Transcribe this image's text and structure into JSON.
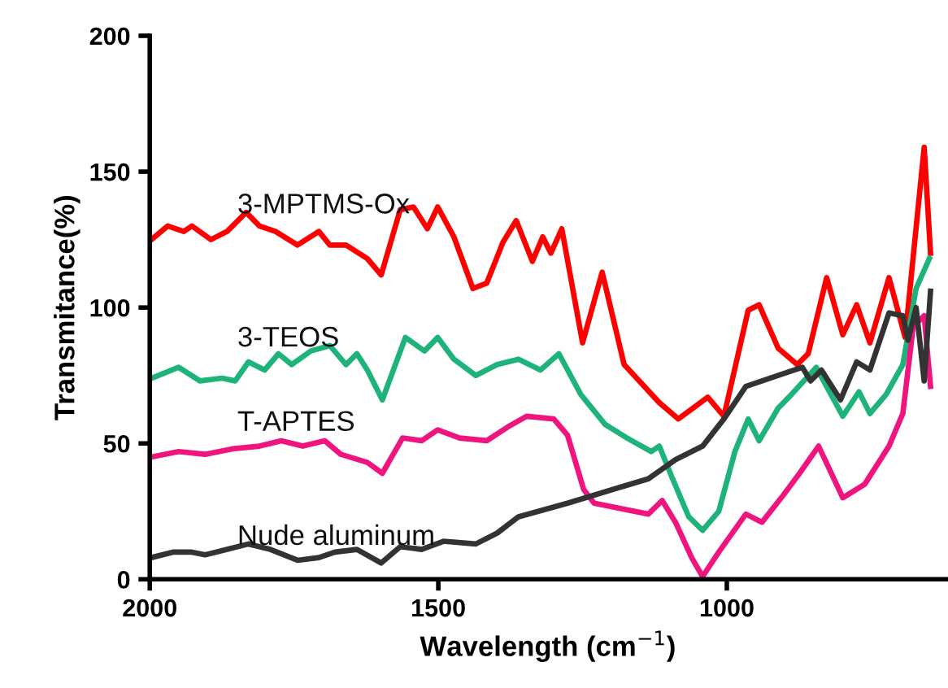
{
  "chart_data": {
    "type": "line",
    "xlabel": "Wavelength (cm$^{−1}$)",
    "ylabel": "Transmitance(%)",
    "xlim": [
      2000,
      620
    ],
    "xticks": [
      2000,
      1500,
      1000
    ],
    "ylim": [
      0,
      200
    ],
    "yticks": [
      0,
      50,
      100,
      150,
      200
    ],
    "grid": false,
    "legend": false,
    "marker": "none",
    "line_style": "solid",
    "series": [
      {
        "name": "3-MPTMS-Ox",
        "color": "#ff0000",
        "x": [
          1997,
          1969,
          1941,
          1927,
          1894,
          1866,
          1833,
          1810,
          1782,
          1744,
          1707,
          1688,
          1660,
          1623,
          1599,
          1566,
          1543,
          1519,
          1501,
          1473,
          1440,
          1416,
          1388,
          1365,
          1337,
          1319,
          1305,
          1286,
          1250,
          1216,
          1178,
          1117,
          1084,
          1033,
          1005,
          963,
          944,
          911,
          878,
          859,
          827,
          799,
          775,
          752,
          719,
          691,
          658,
          647
        ],
        "values": [
          125,
          130,
          128,
          130,
          125,
          128,
          135,
          130,
          128,
          123,
          128,
          123,
          123,
          118,
          112,
          136,
          137,
          129,
          137,
          126,
          107,
          109,
          124,
          132,
          117,
          126,
          120,
          129,
          87,
          113,
          79,
          65,
          59,
          67,
          60,
          99,
          101,
          85,
          79,
          83,
          111,
          90,
          101,
          87,
          111,
          89,
          159,
          120
        ]
      },
      {
        "name": "3-TEOS",
        "color": "#1db37a",
        "x": [
          1997,
          1950,
          1913,
          1875,
          1852,
          1829,
          1801,
          1777,
          1754,
          1721,
          1688,
          1660,
          1641,
          1623,
          1597,
          1557,
          1524,
          1501,
          1473,
          1435,
          1398,
          1361,
          1323,
          1291,
          1253,
          1211,
          1173,
          1131,
          1117,
          1094,
          1066,
          1042,
          1014,
          986,
          963,
          944,
          911,
          888,
          845,
          817,
          799,
          771,
          752,
          724,
          695,
          672,
          649
        ],
        "values": [
          74,
          78,
          73,
          74,
          73,
          80,
          77,
          83,
          79,
          84,
          86,
          79,
          83,
          77,
          66,
          89,
          84,
          89,
          81,
          75,
          79,
          81,
          77,
          83,
          68,
          57,
          52,
          47,
          49,
          37,
          23,
          18,
          25,
          47,
          59,
          51,
          63,
          68,
          78,
          67,
          60,
          69,
          61,
          68,
          79,
          107,
          118
        ]
      },
      {
        "name": "T-APTES",
        "color": "#f0147f",
        "x": [
          1997,
          1950,
          1904,
          1857,
          1810,
          1772,
          1735,
          1697,
          1669,
          1623,
          1597,
          1562,
          1529,
          1501,
          1463,
          1416,
          1380,
          1347,
          1300,
          1276,
          1248,
          1230,
          1183,
          1136,
          1112,
          1089,
          1061,
          1042,
          1014,
          967,
          939,
          902,
          874,
          841,
          799,
          761,
          719,
          695,
          677,
          658,
          647
        ],
        "values": [
          45,
          47,
          46,
          48,
          49,
          51,
          49,
          51,
          46,
          43,
          39,
          52,
          51,
          55,
          52,
          51,
          56,
          60,
          59,
          53,
          33,
          28,
          26,
          24,
          29,
          21,
          8,
          1,
          10,
          24,
          21,
          31,
          39,
          49,
          30,
          35,
          49,
          61,
          93,
          97,
          71
        ]
      },
      {
        "name": "Nude aluminum",
        "color": "#333333",
        "x": [
          1997,
          1960,
          1927,
          1904,
          1866,
          1829,
          1791,
          1744,
          1707,
          1679,
          1641,
          1599,
          1566,
          1529,
          1491,
          1435,
          1398,
          1361,
          1276,
          1183,
          1136,
          1089,
          1042,
          1005,
          967,
          911,
          869,
          855,
          836,
          803,
          775,
          752,
          719,
          695,
          686,
          672,
          658,
          647
        ],
        "values": [
          8,
          10,
          10,
          9,
          11,
          13,
          11,
          7,
          8,
          10,
          11,
          6,
          12,
          11,
          14,
          13,
          17,
          23,
          28,
          34,
          37,
          44,
          49,
          59,
          71,
          75,
          78,
          73,
          77,
          66,
          80,
          77,
          98,
          97,
          88,
          100,
          73,
          106
        ]
      }
    ]
  }
}
